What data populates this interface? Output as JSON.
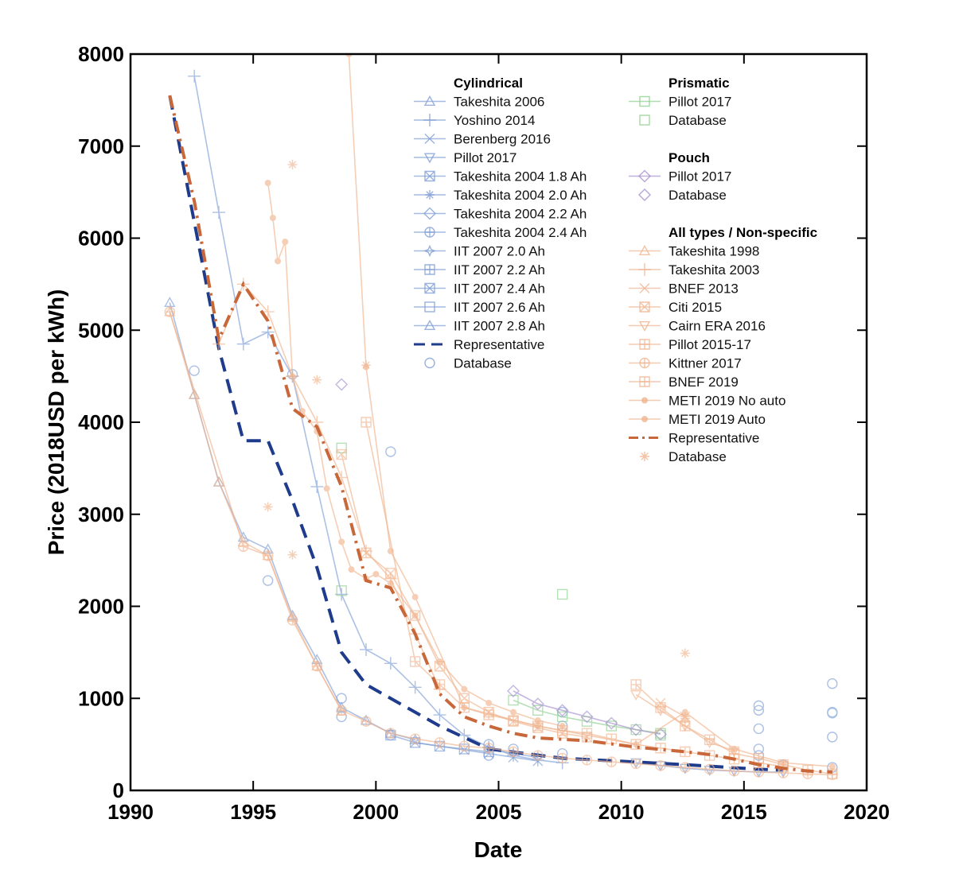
{
  "chart_data": {
    "type": "line",
    "title": "",
    "xlabel": "Date",
    "ylabel": "Price (2018USD per kWh)",
    "xlim": [
      1990,
      2020
    ],
    "ylim": [
      0,
      8000
    ],
    "xticks": [
      "1990",
      "1995",
      "2000",
      "2005",
      "2010",
      "2015",
      "2020"
    ],
    "yticks": [
      "0",
      "1000",
      "2000",
      "3000",
      "4000",
      "5000",
      "6000",
      "7000",
      "8000"
    ],
    "grid": false,
    "legend_position": "top-right",
    "colors": {
      "cylindrical": "#7f9fd6",
      "cylindrical_rep": "#1f3c8c",
      "prismatic": "#8fd08f",
      "pouch": "#a58fd0",
      "nonspecific": "#f0b48f",
      "nonspecific_rep": "#c8683a"
    },
    "legend": {
      "groups": [
        {
          "heading": "Cylindrical",
          "items": [
            "Takeshita 2006",
            "Yoshino 2014",
            "Berenberg 2016",
            "Pillot 2017",
            "Takeshita 2004 1.8 Ah",
            "Takeshita 2004 2.0 Ah",
            "Takeshita 2004 2.2 Ah",
            "Takeshita 2004 2.4 Ah",
            "IIT 2007 2.0 Ah",
            "IIT 2007 2.2 Ah",
            "IIT 2007 2.4 Ah",
            "IIT 2007 2.6 Ah",
            "IIT 2007 2.8 Ah",
            "Representative",
            "Database"
          ]
        },
        {
          "heading": "Prismatic",
          "items": [
            "Pillot 2017",
            "Database"
          ]
        },
        {
          "heading": "Pouch",
          "items": [
            "Pillot 2017",
            "Database"
          ]
        },
        {
          "heading": "All types / Non-specific",
          "items": [
            "Takeshita 1998",
            "Takeshita 2003",
            "BNEF 2013",
            "Citi 2015",
            "Cairn ERA 2016",
            "Pillot 2015-17",
            "Kittner 2017",
            "BNEF 2019",
            "METI 2019 No auto",
            "METI 2019 Auto",
            "Representative",
            "Database"
          ]
        }
      ]
    },
    "series": [
      {
        "name": "Takeshita 2006",
        "group": "cylindrical",
        "marker": "triangle",
        "x": [
          1991.6,
          1992.6,
          1993.6,
          1994.6,
          1995.6,
          1996.6,
          1997.6,
          1998.6,
          1999.6,
          2000.6,
          2001.6
        ],
        "y": [
          5300,
          4300,
          3350,
          2750,
          2620,
          1900,
          1420,
          900,
          760,
          620,
          550
        ]
      },
      {
        "name": "Yoshino 2014",
        "group": "cylindrical",
        "marker": "plus",
        "x": [
          1992.6,
          1993.6,
          1994.6,
          1995.6,
          1996.6,
          1997.6,
          1998.6,
          1999.6,
          2000.6,
          2001.6,
          2002.6,
          2003.6,
          2004.6,
          2005.6,
          2006.6,
          2007.6
        ],
        "y": [
          7760,
          6280,
          4850,
          4980,
          4500,
          3300,
          2130,
          1530,
          1380,
          1120,
          820,
          600,
          470,
          380,
          330,
          300
        ]
      },
      {
        "name": "Berenberg 2016",
        "group": "cylindrical",
        "marker": "x",
        "x": [
          2001.6,
          2002.6,
          2003.6,
          2004.6,
          2005.6,
          2006.6
        ],
        "y": [
          520,
          480,
          440,
          400,
          360,
          320
        ]
      },
      {
        "name": "Pillot 2017",
        "group": "cylindrical",
        "marker": "triangle-down",
        "x": [
          2010.6,
          2011.6,
          2012.6,
          2013.6,
          2014.6,
          2015.6,
          2016.6
        ],
        "y": [
          300,
          270,
          240,
          220,
          210,
          200,
          200
        ]
      },
      {
        "name": "Takeshita 2004",
        "group": "cylindrical",
        "marker": "square",
        "x": [
          2000.6,
          2001.6,
          2002.6,
          2003.6,
          2004.6
        ],
        "y": [
          600,
          520,
          480,
          450,
          420
        ]
      },
      {
        "name": "IIT 2007",
        "group": "cylindrical",
        "marker": "star",
        "x": [
          2004.6,
          2005.6,
          2006.6
        ],
        "y": [
          460,
          400,
          360
        ]
      },
      {
        "name": "Representative",
        "group": "cylindrical_rep",
        "marker": "none",
        "dash": "dash",
        "x": [
          1991.6,
          1993.6,
          1994.6,
          1995.6,
          1996.6,
          1997.6,
          1998.6,
          1999.6,
          2002.6,
          2004.6,
          2007.6,
          2012.6,
          2015.6,
          2016.6
        ],
        "y": [
          7550,
          4800,
          3800,
          3800,
          3150,
          2420,
          1500,
          1150,
          700,
          450,
          350,
          280,
          230,
          220
        ]
      },
      {
        "name": "Database",
        "group": "cylindrical",
        "marker": "circle",
        "line": false,
        "x": [
          1992.6,
          1995.6,
          1996.6,
          1998.6,
          1998.6,
          2000.6,
          2000.6,
          2004.6,
          2004.6,
          2005.6,
          2007.6,
          2007.6,
          2007.6,
          2015.6,
          2015.6,
          2015.6,
          2015.6,
          2015.6,
          2018.6,
          2018.6,
          2018.6,
          2018.6,
          2018.6,
          2016.6
        ],
        "y": [
          4560,
          2280,
          4520,
          1000,
          800,
          3680,
          600,
          500,
          380,
          450,
          850,
          700,
          400,
          920,
          870,
          670,
          450,
          380,
          1160,
          850,
          840,
          580,
          250,
          280
        ]
      },
      {
        "name": "Pillot 2017",
        "group": "prismatic",
        "marker": "square",
        "x": [
          2005.6,
          2006.6,
          2007.6,
          2008.6,
          2009.6,
          2010.6,
          2011.6
        ],
        "y": [
          980,
          870,
          800,
          750,
          700,
          660,
          620
        ]
      },
      {
        "name": "Database",
        "group": "prismatic",
        "marker": "square",
        "line": false,
        "x": [
          1998.6,
          1998.6,
          2007.6,
          2011.6
        ],
        "y": [
          3720,
          2170,
          2130,
          600
        ]
      },
      {
        "name": "Pillot 2017",
        "group": "pouch",
        "marker": "diamond",
        "x": [
          2005.6,
          2006.6,
          2007.6,
          2008.6,
          2009.6,
          2010.6,
          2011.6
        ],
        "y": [
          1080,
          940,
          870,
          800,
          730,
          660,
          610
        ]
      },
      {
        "name": "Database",
        "group": "pouch",
        "marker": "diamond",
        "line": false,
        "x": [
          1998.6
        ],
        "y": [
          4410
        ]
      },
      {
        "name": "Takeshita 1998",
        "group": "nonspecific",
        "marker": "triangle",
        "x": [
          1991.6,
          1992.6,
          1993.6,
          1994.6,
          1995.6,
          1996.6,
          1997.6,
          1998.6
        ],
        "y": [
          5200,
          4300,
          3350,
          2700,
          2550,
          1880,
          1350,
          860
        ]
      },
      {
        "name": "Takeshita 2003",
        "group": "nonspecific",
        "marker": "plus",
        "x": [
          1993.6,
          1994.6,
          1995.6,
          1996.6,
          1997.6,
          1998.6,
          1999.6,
          2000.6,
          2001.6,
          2002.6
        ],
        "y": [
          4850,
          5500,
          5200,
          4500,
          4000,
          3400,
          2600,
          2300,
          1700,
          1100
        ]
      },
      {
        "name": "BNEF 2013",
        "group": "nonspecific",
        "marker": "x",
        "x": [
          2011.6,
          2012.6
        ],
        "y": [
          950,
          800
        ]
      },
      {
        "name": "Citi 2015",
        "group": "nonspecific",
        "marker": "square-x",
        "x": [
          1998.6,
          1999.6,
          2000.6,
          2001.6,
          2002.6,
          2003.6,
          2004.6,
          2005.6,
          2006.6,
          2007.6,
          2008.6
        ],
        "y": [
          3650,
          2580,
          2360,
          1900,
          1350,
          1000,
          850,
          750,
          680,
          620,
          580
        ]
      },
      {
        "name": "Cairn ERA 2016",
        "group": "nonspecific",
        "marker": "triangle-down",
        "x": [
          2010.6,
          2011.6,
          2012.6,
          2013.6,
          2014.6
        ],
        "y": [
          1040,
          870,
          700,
          520,
          430
        ]
      },
      {
        "name": "Pillot 2015-17",
        "group": "nonspecific",
        "marker": "square-dot",
        "x": [
          1999.6,
          2001.6,
          2002.6,
          2003.6,
          2004.6,
          2005.6,
          2006.6,
          2007.6,
          2008.6,
          2009.6,
          2010.6,
          2011.6,
          2012.6,
          2013.6,
          2014.6,
          2015.6,
          2016.6
        ],
        "y": [
          4000,
          1400,
          1150,
          900,
          820,
          760,
          700,
          650,
          620,
          560,
          500,
          460,
          420,
          380,
          340,
          300,
          260
        ]
      },
      {
        "name": "Kittner 2017",
        "group": "nonspecific",
        "marker": "circle-plus",
        "x": [
          1991.6,
          1994.6,
          1995.6,
          1996.6,
          1997.6,
          1998.6,
          1999.6,
          2000.6,
          2001.6,
          2002.6,
          2003.6,
          2004.6,
          2005.6,
          2006.6,
          2007.6,
          2008.6,
          2009.6,
          2010.6,
          2011.6,
          2012.6,
          2013.6,
          2014.6,
          2015.6,
          2016.6,
          2017.6,
          2018.6
        ],
        "y": [
          5200,
          2650,
          2550,
          1850,
          1350,
          870,
          750,
          620,
          560,
          520,
          480,
          460,
          420,
          380,
          350,
          330,
          310,
          290,
          270,
          250,
          230,
          210,
          200,
          190,
          180,
          170
        ]
      },
      {
        "name": "BNEF 2019",
        "group": "nonspecific",
        "marker": "square-dot",
        "x": [
          2010.6,
          2011.6,
          2012.6,
          2013.6,
          2014.6,
          2015.6,
          2016.6,
          2017.6,
          2018.6
        ],
        "y": [
          1150,
          900,
          700,
          550,
          400,
          350,
          280,
          220,
          180
        ]
      },
      {
        "name": "METI 2019 No auto",
        "group": "nonspecific",
        "marker": "dot",
        "x": [
          1995.6,
          1995.8,
          1996.0,
          1996.3,
          1996.6,
          1997.0,
          1997.6,
          1998.0,
          1998.6,
          1999.0,
          1999.6,
          2000.0,
          2000.6,
          2001.6,
          2002.6,
          2003.6,
          2004.6,
          2005.6,
          2006.6,
          2007.6
        ],
        "y": [
          6600,
          6220,
          5750,
          5960,
          4500,
          4120,
          3900,
          3280,
          2700,
          2400,
          2300,
          2350,
          2250,
          1900,
          1400,
          1100,
          950,
          850,
          760,
          700
        ]
      },
      {
        "name": "METI 2019 Auto",
        "group": "nonspecific",
        "marker": "dot",
        "x": [
          1998.9,
          1999.6,
          2000.6,
          2001.6,
          2003.6,
          2006.6,
          2010.6,
          2012.6,
          2014.6,
          2016.6,
          2018.6
        ],
        "y": [
          8000,
          4600,
          2600,
          2100,
          900,
          700,
          500,
          850,
          450,
          300,
          260
        ]
      },
      {
        "name": "Representative",
        "group": "nonspecific_rep",
        "marker": "none",
        "dash": "dashdot",
        "x": [
          1991.6,
          1992.6,
          1993.6,
          1994.6,
          1995.6,
          1996.6,
          1997.6,
          1998.6,
          1999.6,
          2000.6,
          2001.6,
          2002.6,
          2003.6,
          2004.6,
          2005.6,
          2006.6,
          2008.6,
          2010.6,
          2012.6,
          2013.6,
          2014.6,
          2015.6,
          2016.6,
          2017.6,
          2018.6
        ],
        "y": [
          7550,
          6400,
          4900,
          5500,
          5100,
          4150,
          3950,
          3300,
          2280,
          2200,
          1700,
          1050,
          800,
          700,
          620,
          570,
          540,
          470,
          420,
          390,
          340,
          280,
          240,
          210,
          200
        ]
      },
      {
        "name": "Database",
        "group": "nonspecific",
        "marker": "asterisk",
        "line": false,
        "x": [
          1995.6,
          1996.6,
          1996.6,
          1997.6,
          1999.6,
          2012.6,
          2012.6,
          2012.6
        ],
        "y": [
          3080,
          6800,
          2560,
          4460,
          4620,
          1490,
          800,
          780
        ]
      }
    ]
  }
}
